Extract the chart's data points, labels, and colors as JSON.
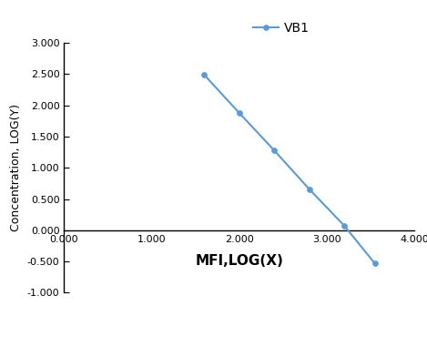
{
  "x": [
    1.6,
    2.0,
    2.4,
    2.8,
    3.2,
    3.55
  ],
  "y": [
    2.49,
    1.88,
    1.28,
    0.66,
    0.075,
    -0.53
  ],
  "line_color": "#5b9bd5",
  "marker_color": "#5b9bd5",
  "marker_style": "o",
  "marker_size": 4,
  "line_width": 1.5,
  "legend_label": "VB1",
  "xlabel": "MFI,LOG(X)",
  "ylabel": "Concentration, LOG(Y)",
  "xlim": [
    0.0,
    4.0
  ],
  "ylim": [
    -1.0,
    3.0
  ],
  "xticks": [
    0.0,
    1.0,
    2.0,
    3.0,
    4.0
  ],
  "yticks": [
    -1.0,
    -0.5,
    0.0,
    0.5,
    1.0,
    1.5,
    2.0,
    2.5,
    3.0
  ],
  "xlabel_fontsize": 11,
  "ylabel_fontsize": 9,
  "tick_fontsize": 8,
  "legend_fontsize": 10,
  "background_color": "#ffffff"
}
